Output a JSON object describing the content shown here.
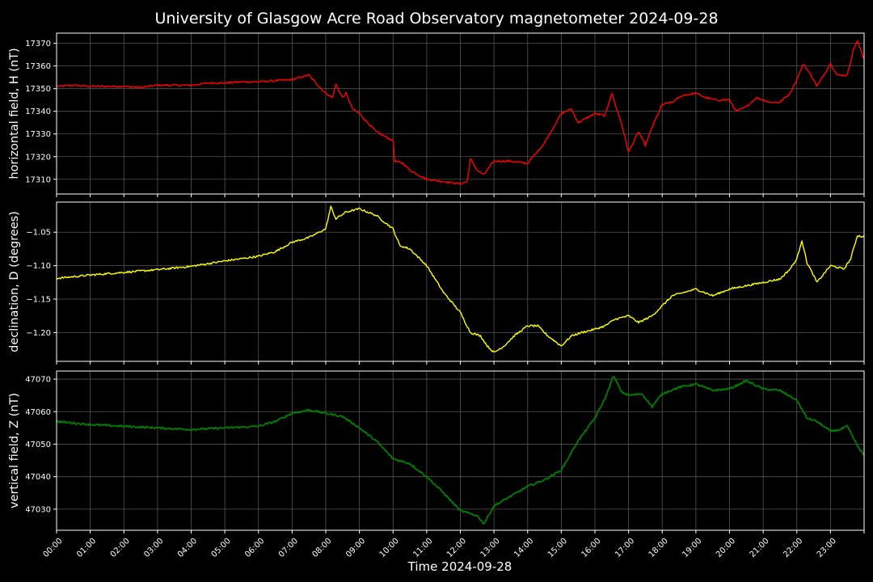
{
  "chart_data": {
    "type": "line",
    "title": "University of Glasgow Acre Road Observatory magnetometer 2024-09-28",
    "xlabel": "Time 2024-09-28",
    "x_unit": "hours",
    "x_tick_labels": [
      "00:00",
      "01:00",
      "02:00",
      "03:00",
      "04:00",
      "05:00",
      "06:00",
      "07:00",
      "08:00",
      "09:00",
      "10:00",
      "11:00",
      "12:00",
      "13:00",
      "14:00",
      "15:00",
      "16:00",
      "17:00",
      "18:00",
      "19:00",
      "20:00",
      "21:00",
      "22:00",
      "23:00"
    ],
    "xlim": [
      0,
      24
    ],
    "grid": true,
    "panels": [
      {
        "ylabel": "horizontal field, H (nT)",
        "color": "#ff0000",
        "ylim": [
          17303.5,
          17374.5
        ],
        "yticks": [
          17310,
          17320,
          17330,
          17340,
          17350,
          17360,
          17370
        ],
        "ytick_labels": [
          "17310",
          "17320",
          "17330",
          "17340",
          "17350",
          "17360",
          "17370"
        ],
        "points": [
          [
            0,
            17351
          ],
          [
            0.5,
            17351.5
          ],
          [
            1,
            17351
          ],
          [
            1.5,
            17351
          ],
          [
            2,
            17351
          ],
          [
            2.5,
            17350.5
          ],
          [
            3,
            17351.5
          ],
          [
            3.5,
            17351.5
          ],
          [
            4,
            17351.5
          ],
          [
            4.5,
            17352.5
          ],
          [
            5,
            17352.5
          ],
          [
            5.5,
            17353
          ],
          [
            6,
            17353
          ],
          [
            6.5,
            17353.5
          ],
          [
            7,
            17354
          ],
          [
            7.5,
            17356
          ],
          [
            7.8,
            17351
          ],
          [
            8,
            17348
          ],
          [
            8.2,
            17346
          ],
          [
            8.3,
            17352
          ],
          [
            8.5,
            17346
          ],
          [
            8.6,
            17348
          ],
          [
            8.8,
            17341
          ],
          [
            9,
            17339
          ],
          [
            9.5,
            17331
          ],
          [
            10,
            17327
          ],
          [
            10.05,
            17318
          ],
          [
            10.3,
            17317
          ],
          [
            10.5,
            17314
          ],
          [
            11,
            17310
          ],
          [
            11.5,
            17309
          ],
          [
            12,
            17308
          ],
          [
            12.2,
            17309
          ],
          [
            12.3,
            17319
          ],
          [
            12.5,
            17314
          ],
          [
            12.7,
            17312
          ],
          [
            13,
            17318
          ],
          [
            13.5,
            17318
          ],
          [
            14,
            17317
          ],
          [
            14.5,
            17326
          ],
          [
            15,
            17339
          ],
          [
            15.3,
            17341
          ],
          [
            15.5,
            17335
          ],
          [
            16,
            17339
          ],
          [
            16.3,
            17338
          ],
          [
            16.5,
            17348
          ],
          [
            16.8,
            17334
          ],
          [
            17,
            17322
          ],
          [
            17.3,
            17331
          ],
          [
            17.5,
            17325
          ],
          [
            17.7,
            17333
          ],
          [
            18,
            17343
          ],
          [
            18.3,
            17344
          ],
          [
            18.6,
            17347
          ],
          [
            19,
            17348
          ],
          [
            19.3,
            17346
          ],
          [
            19.6,
            17345
          ],
          [
            20,
            17345
          ],
          [
            20.2,
            17340
          ],
          [
            20.5,
            17342
          ],
          [
            20.8,
            17346
          ],
          [
            21.2,
            17344
          ],
          [
            21.5,
            17344
          ],
          [
            21.8,
            17348
          ],
          [
            22,
            17354
          ],
          [
            22.2,
            17361
          ],
          [
            22.5,
            17354
          ],
          [
            22.6,
            17351
          ],
          [
            23,
            17361
          ],
          [
            23.2,
            17356
          ],
          [
            23.5,
            17356
          ],
          [
            23.7,
            17368
          ],
          [
            23.8,
            17371
          ],
          [
            24,
            17363
          ]
        ]
      },
      {
        "ylabel": "declination, D (degrees)",
        "color": "#ffff00",
        "ylim": [
          -1.243,
          -1.005
        ],
        "yticks": [
          -1.2,
          -1.15,
          -1.1,
          -1.05
        ],
        "ytick_labels": [
          "−1.20",
          "−1.15",
          "−1.10",
          "−1.05"
        ],
        "points": [
          [
            0,
            -1.119
          ],
          [
            1,
            -1.114
          ],
          [
            2,
            -1.11
          ],
          [
            3,
            -1.106
          ],
          [
            4,
            -1.101
          ],
          [
            5,
            -1.093
          ],
          [
            6,
            -1.086
          ],
          [
            6.5,
            -1.079
          ],
          [
            7,
            -1.065
          ],
          [
            7.5,
            -1.058
          ],
          [
            8,
            -1.045
          ],
          [
            8.15,
            -1.012
          ],
          [
            8.3,
            -1.03
          ],
          [
            8.6,
            -1.02
          ],
          [
            9,
            -1.015
          ],
          [
            9.5,
            -1.025
          ],
          [
            10,
            -1.045
          ],
          [
            10.2,
            -1.07
          ],
          [
            10.5,
            -1.075
          ],
          [
            11,
            -1.1
          ],
          [
            11.5,
            -1.14
          ],
          [
            12,
            -1.17
          ],
          [
            12.3,
            -1.2
          ],
          [
            12.6,
            -1.205
          ],
          [
            12.8,
            -1.22
          ],
          [
            13,
            -1.23
          ],
          [
            13.3,
            -1.22
          ],
          [
            13.6,
            -1.205
          ],
          [
            14,
            -1.19
          ],
          [
            14.3,
            -1.19
          ],
          [
            14.6,
            -1.205
          ],
          [
            15,
            -1.22
          ],
          [
            15.3,
            -1.205
          ],
          [
            15.6,
            -1.2
          ],
          [
            16,
            -1.195
          ],
          [
            16.3,
            -1.19
          ],
          [
            16.6,
            -1.18
          ],
          [
            17,
            -1.175
          ],
          [
            17.3,
            -1.185
          ],
          [
            17.7,
            -1.175
          ],
          [
            18,
            -1.16
          ],
          [
            18.3,
            -1.145
          ],
          [
            19,
            -1.135
          ],
          [
            19.5,
            -1.145
          ],
          [
            20,
            -1.135
          ],
          [
            20.5,
            -1.13
          ],
          [
            21,
            -1.125
          ],
          [
            21.5,
            -1.12
          ],
          [
            21.8,
            -1.105
          ],
          [
            22,
            -1.09
          ],
          [
            22.15,
            -1.062
          ],
          [
            22.3,
            -1.095
          ],
          [
            22.6,
            -1.125
          ],
          [
            23,
            -1.1
          ],
          [
            23.4,
            -1.105
          ],
          [
            23.6,
            -1.09
          ],
          [
            23.8,
            -1.055
          ],
          [
            24,
            -1.057
          ]
        ]
      },
      {
        "ylabel": "vertical field, Z (nT)",
        "color": "#008000",
        "ylim": [
          47023.5,
          47072.5
        ],
        "yticks": [
          47030,
          47040,
          47050,
          47060,
          47070
        ],
        "ytick_labels": [
          "47030",
          "47040",
          "47050",
          "47060",
          "47070"
        ],
        "points": [
          [
            0,
            47057
          ],
          [
            1,
            47056
          ],
          [
            2,
            47055.5
          ],
          [
            3,
            47055
          ],
          [
            4,
            47054.5
          ],
          [
            5,
            47055
          ],
          [
            6,
            47055.5
          ],
          [
            6.5,
            47057
          ],
          [
            7,
            47059.5
          ],
          [
            7.5,
            47060.5
          ],
          [
            8,
            47059.5
          ],
          [
            8.5,
            47058.5
          ],
          [
            9,
            47055
          ],
          [
            9.5,
            47051
          ],
          [
            10,
            47045.5
          ],
          [
            10.5,
            47044
          ],
          [
            11,
            47040
          ],
          [
            11.5,
            47035
          ],
          [
            12,
            47029.5
          ],
          [
            12.5,
            47028
          ],
          [
            12.7,
            47025.5
          ],
          [
            13,
            47031
          ],
          [
            13.5,
            47034
          ],
          [
            14,
            47037
          ],
          [
            14.5,
            47039
          ],
          [
            15,
            47042
          ],
          [
            15.5,
            47051
          ],
          [
            16,
            47058
          ],
          [
            16.3,
            47064
          ],
          [
            16.55,
            47071
          ],
          [
            16.8,
            47066
          ],
          [
            17,
            47065
          ],
          [
            17.4,
            47065.5
          ],
          [
            17.7,
            47061.5
          ],
          [
            18,
            47065.5
          ],
          [
            18.5,
            47067.5
          ],
          [
            19,
            47068.5
          ],
          [
            19.5,
            47066.5
          ],
          [
            20,
            47067
          ],
          [
            20.5,
            47069.5
          ],
          [
            21,
            47067
          ],
          [
            21.5,
            47066.5
          ],
          [
            22,
            47063.5
          ],
          [
            22.3,
            47058
          ],
          [
            22.6,
            47057
          ],
          [
            23,
            47054
          ],
          [
            23.3,
            47054.5
          ],
          [
            23.5,
            47055.5
          ],
          [
            23.8,
            47049.5
          ],
          [
            24,
            47046.5
          ]
        ]
      }
    ]
  }
}
